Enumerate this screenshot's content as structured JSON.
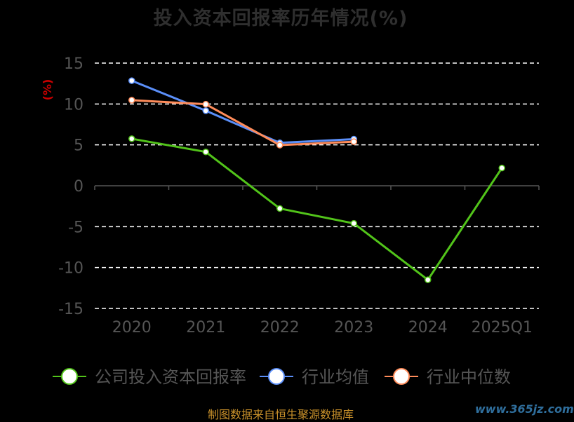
{
  "chart_data": {
    "type": "line",
    "title": "投入资本回报率历年情况(%)",
    "ylabel": "(%)",
    "categories": [
      "2020",
      "2021",
      "2022",
      "2023",
      "2024",
      "2025Q1"
    ],
    "ylim": [
      -15,
      15
    ],
    "yticks": [
      15,
      10,
      5,
      0,
      -5,
      -10,
      -15
    ],
    "grid": true,
    "legend_position": "bottom",
    "series": [
      {
        "name": "公司投入资本回报率",
        "color": "#52c41a",
        "values": [
          5.75,
          4.14,
          -2.78,
          -4.6,
          -11.5,
          2.17
        ]
      },
      {
        "name": "行业均值",
        "color": "#5b8ff9",
        "values": [
          12.85,
          9.18,
          5.25,
          5.7,
          null,
          null
        ]
      },
      {
        "name": "行业中位数",
        "color": "#ff8c5a",
        "values": [
          10.47,
          9.97,
          4.97,
          5.39,
          null,
          null
        ]
      }
    ]
  },
  "footer": "制图数据来自恒生聚源数据库",
  "watermark": "www.365jz.com",
  "colors": {
    "background": "#000000",
    "axis_text": "#555555",
    "ylabel": "#cc0000"
  }
}
